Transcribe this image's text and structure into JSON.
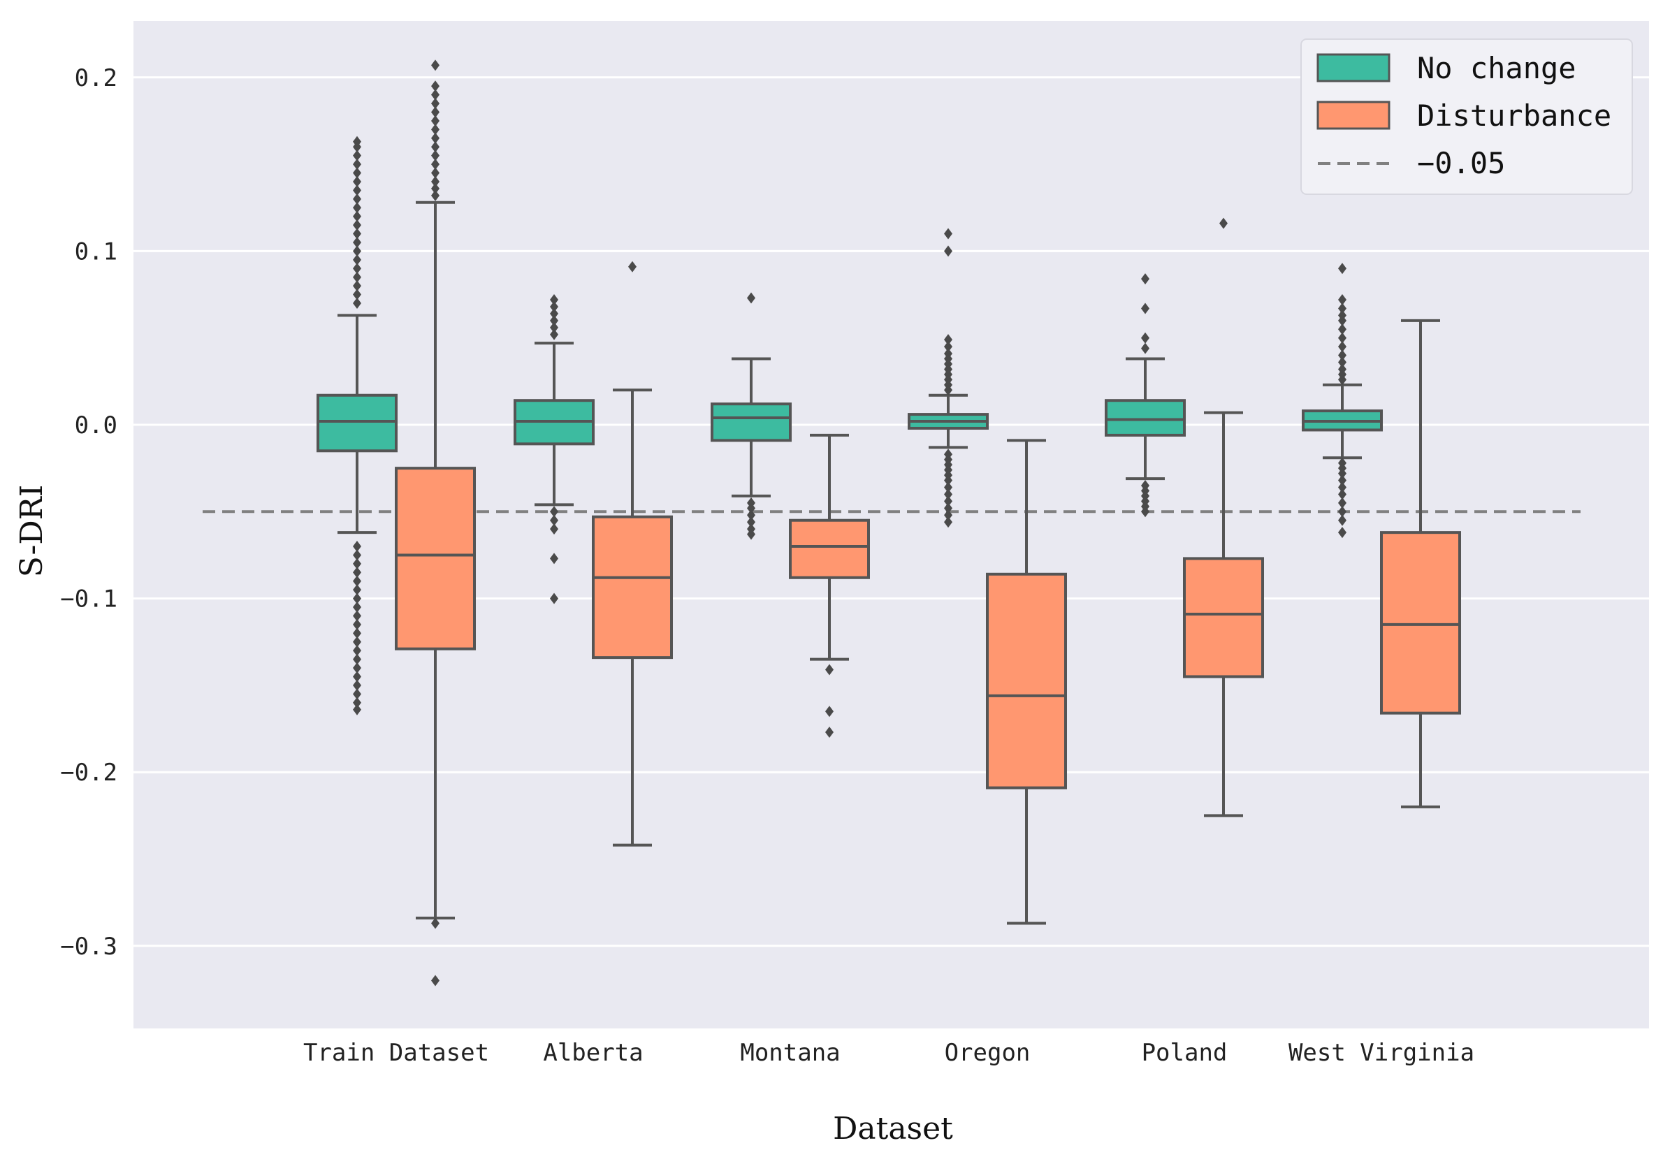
{
  "chart_data": {
    "type": "box",
    "xlabel": "Dataset",
    "ylabel": "S-DRI",
    "categories": [
      "Train Dataset",
      "Alberta",
      "Montana",
      "Oregon",
      "Poland",
      "West Virginia"
    ],
    "ylim": [
      -0.35,
      0.23
    ],
    "yticks": [
      0.2,
      0.1,
      0.0,
      -0.1,
      -0.2,
      -0.3
    ],
    "ytick_labels": [
      "0.2",
      "0.1",
      "0.0",
      "−0.1",
      "−0.2",
      "−0.3"
    ],
    "grid": true,
    "legend_position": "top-right",
    "reference_line": {
      "value": -0.05,
      "label": "−0.05",
      "color": "#808080",
      "style": "dashed"
    },
    "series": [
      {
        "name": "No change",
        "color": "#3dbba0",
        "boxes": [
          {
            "whisker_low": -0.062,
            "q1": -0.015,
            "median": 0.002,
            "q3": 0.017,
            "whisker_high": 0.063,
            "outliers": [
              0.07,
              0.075,
              0.08,
              0.085,
              0.09,
              0.095,
              0.1,
              0.105,
              0.11,
              0.115,
              0.12,
              0.125,
              0.13,
              0.135,
              0.14,
              0.145,
              0.15,
              0.155,
              0.16,
              0.163,
              -0.07,
              -0.075,
              -0.08,
              -0.085,
              -0.09,
              -0.095,
              -0.1,
              -0.105,
              -0.11,
              -0.115,
              -0.12,
              -0.125,
              -0.13,
              -0.135,
              -0.14,
              -0.145,
              -0.15,
              -0.155,
              -0.16,
              -0.164
            ]
          },
          {
            "whisker_low": -0.046,
            "q1": -0.011,
            "median": 0.002,
            "q3": 0.014,
            "whisker_high": 0.047,
            "outliers": [
              0.052,
              0.056,
              0.06,
              0.064,
              0.068,
              0.072,
              -0.05,
              -0.055,
              -0.06,
              -0.077,
              -0.1
            ]
          },
          {
            "whisker_low": -0.041,
            "q1": -0.009,
            "median": 0.004,
            "q3": 0.012,
            "whisker_high": 0.038,
            "outliers": [
              0.073,
              -0.045,
              -0.048,
              -0.052,
              -0.056,
              -0.06,
              -0.063
            ]
          },
          {
            "whisker_low": -0.013,
            "q1": -0.002,
            "median": 0.002,
            "q3": 0.006,
            "whisker_high": 0.017,
            "outliers": [
              0.02,
              0.023,
              0.026,
              0.029,
              0.032,
              0.035,
              0.038,
              0.041,
              0.045,
              0.049,
              0.1,
              0.11,
              -0.017,
              -0.02,
              -0.023,
              -0.026,
              -0.029,
              -0.032,
              -0.036,
              -0.04,
              -0.044,
              -0.048,
              -0.052,
              -0.056
            ]
          },
          {
            "whisker_low": -0.031,
            "q1": -0.006,
            "median": 0.003,
            "q3": 0.014,
            "whisker_high": 0.038,
            "outliers": [
              0.044,
              0.05,
              0.067,
              0.084,
              -0.035,
              -0.038,
              -0.041,
              -0.044,
              -0.047,
              -0.05
            ]
          },
          {
            "whisker_low": -0.019,
            "q1": -0.003,
            "median": 0.002,
            "q3": 0.008,
            "whisker_high": 0.023,
            "outliers": [
              0.026,
              0.029,
              0.032,
              0.036,
              0.04,
              0.045,
              0.05,
              0.055,
              0.06,
              0.063,
              0.067,
              0.072,
              0.09,
              -0.022,
              -0.025,
              -0.028,
              -0.032,
              -0.036,
              -0.04,
              -0.045,
              -0.05,
              -0.055,
              -0.062
            ]
          }
        ]
      },
      {
        "name": "Disturbance",
        "color": "#ff9770",
        "boxes": [
          {
            "whisker_low": -0.284,
            "q1": -0.129,
            "median": -0.075,
            "q3": -0.025,
            "whisker_high": 0.128,
            "outliers": [
              0.132,
              0.136,
              0.14,
              0.145,
              0.15,
              0.155,
              0.16,
              0.165,
              0.17,
              0.175,
              0.18,
              0.185,
              0.19,
              0.195,
              0.207,
              -0.287,
              -0.32
            ]
          },
          {
            "whisker_low": -0.242,
            "q1": -0.134,
            "median": -0.088,
            "q3": -0.053,
            "whisker_high": 0.02,
            "outliers": [
              0.091
            ]
          },
          {
            "whisker_low": -0.135,
            "q1": -0.088,
            "median": -0.07,
            "q3": -0.055,
            "whisker_high": -0.006,
            "outliers": [
              -0.141,
              -0.165,
              -0.177
            ]
          },
          {
            "whisker_low": -0.287,
            "q1": -0.209,
            "median": -0.156,
            "q3": -0.086,
            "whisker_high": -0.009,
            "outliers": []
          },
          {
            "whisker_low": -0.225,
            "q1": -0.145,
            "median": -0.109,
            "q3": -0.077,
            "whisker_high": 0.007,
            "outliers": [
              0.116
            ]
          },
          {
            "whisker_low": -0.22,
            "q1": -0.166,
            "median": -0.115,
            "q3": -0.062,
            "whisker_high": 0.06,
            "outliers": []
          }
        ]
      }
    ]
  }
}
